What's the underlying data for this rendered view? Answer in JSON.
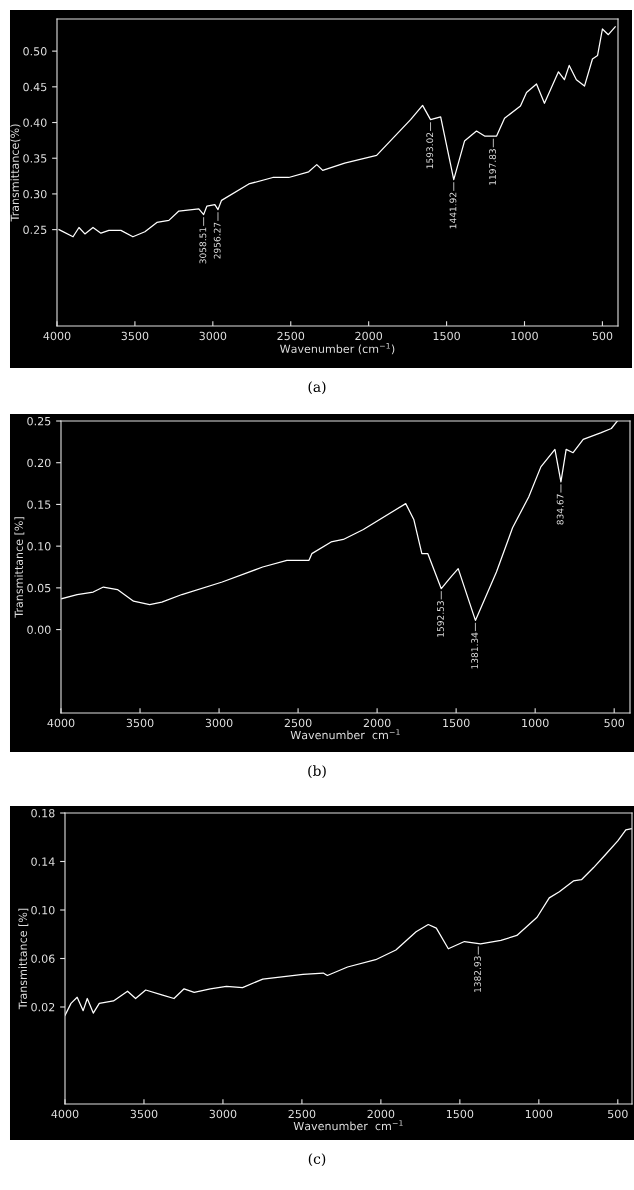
{
  "chart_data": [
    {
      "type": "line",
      "xlabel": "Wavenumber (cm$^{−1}$)",
      "ylabel": "Transmittance(%)",
      "xlim": [
        4000,
        400
      ],
      "ylim": [
        0.115,
        0.545
      ],
      "xticks": [
        4000,
        3500,
        3000,
        2500,
        2000,
        1500,
        1000,
        500
      ],
      "yticks": [
        {
          "value": 0.25,
          "label": "0.25"
        },
        {
          "value": 0.3,
          "label": "0.30"
        },
        {
          "value": 0.35,
          "label": "0.35"
        },
        {
          "value": 0.4,
          "label": "0.40"
        },
        {
          "value": 0.45,
          "label": "0.45"
        },
        {
          "value": 0.5,
          "label": "0.50"
        }
      ],
      "grid": false,
      "legend": false,
      "series": [
        {
          "color": "#ffffff",
          "x": [
            3987,
            3897,
            3859,
            3821,
            3769,
            3718,
            3667,
            3590,
            3513,
            3436,
            3359,
            3282,
            3218,
            3090,
            3059,
            3038,
            2987,
            2967,
            2944,
            2769,
            2615,
            2513,
            2385,
            2333,
            2295,
            2154,
            1949,
            1731,
            1654,
            1603,
            1538,
            1454,
            1385,
            1308,
            1256,
            1179,
            1128,
            1026,
            987,
            923,
            872,
            782,
            744,
            713,
            667,
            615,
            564,
            531,
            500,
            462,
            418
          ],
          "values": [
            0.25,
            0.24,
            0.253,
            0.244,
            0.253,
            0.245,
            0.249,
            0.249,
            0.24,
            0.247,
            0.26,
            0.263,
            0.276,
            0.279,
            0.271,
            0.283,
            0.285,
            0.278,
            0.291,
            0.314,
            0.323,
            0.323,
            0.331,
            0.341,
            0.333,
            0.343,
            0.354,
            0.404,
            0.424,
            0.404,
            0.408,
            0.32,
            0.374,
            0.388,
            0.381,
            0.381,
            0.406,
            0.423,
            0.442,
            0.454,
            0.427,
            0.471,
            0.46,
            0.48,
            0.46,
            0.451,
            0.489,
            0.494,
            0.531,
            0.523,
            0.534
          ]
        }
      ],
      "annotations": [
        {
          "text": "3058.51",
          "x": 3059,
          "y": 0.271
        },
        {
          "text": "2956.27",
          "x": 2967,
          "y": 0.278
        },
        {
          "text": "1593.02",
          "x": 1603,
          "y": 0.404
        },
        {
          "text": "1441.92",
          "x": 1454,
          "y": 0.32
        },
        {
          "text": "1197.83",
          "x": 1200,
          "y": 0.381
        },
        "(a)"
      ]
    },
    {
      "type": "line",
      "xlabel": "Wavenumber  cm$^{−1}$",
      "ylabel": "Transmittance [%]",
      "xlim": [
        4000,
        400
      ],
      "ylim": [
        -0.1,
        0.25
      ],
      "xticks": [
        4000,
        3500,
        3000,
        2500,
        2000,
        1500,
        1000,
        500
      ],
      "yticks": [
        {
          "value": 0.0,
          "label": "0.00"
        },
        {
          "value": 0.05,
          "label": "0.05"
        },
        {
          "value": 0.1,
          "label": "0.10"
        },
        {
          "value": 0.15,
          "label": "0.15"
        },
        {
          "value": 0.2,
          "label": "0.20"
        },
        {
          "value": 0.25,
          "label": "0.25"
        }
      ],
      "grid": false,
      "legend": false,
      "series": [
        {
          "color": "#ffffff",
          "x": [
            3995,
            3898,
            3796,
            3732,
            3643,
            3541,
            3439,
            3362,
            3235,
            2980,
            2724,
            2571,
            2431,
            2413,
            2291,
            2214,
            2087,
            1819,
            1768,
            1717,
            1679,
            1594,
            1538,
            1487,
            1378,
            1245,
            1143,
            1041,
            964,
            875,
            837,
            804,
            760,
            696,
            582,
            518,
            480
          ],
          "values": [
            0.037,
            0.042,
            0.045,
            0.051,
            0.048,
            0.034,
            0.03,
            0.033,
            0.042,
            0.057,
            0.075,
            0.083,
            0.083,
            0.091,
            0.105,
            0.108,
            0.12,
            0.151,
            0.132,
            0.091,
            0.091,
            0.049,
            0.062,
            0.073,
            0.011,
            0.069,
            0.122,
            0.159,
            0.195,
            0.216,
            0.177,
            0.216,
            0.212,
            0.228,
            0.236,
            0.241,
            0.25
          ]
        }
      ],
      "annotations": [
        {
          "text": "1592.53",
          "x": 1594,
          "y": 0.049
        },
        {
          "text": "1381.34",
          "x": 1378,
          "y": 0.011
        },
        {
          "text": "834.67",
          "x": 837,
          "y": 0.177
        },
        "(b)"
      ]
    },
    {
      "type": "line",
      "xlabel": "Wavenumber  cm$^{−1}$",
      "ylabel": "Transmittance [%]",
      "xlim": [
        4000,
        410
      ],
      "ylim": [
        -0.06,
        0.18
      ],
      "xticks": [
        4000,
        3500,
        3000,
        2500,
        2000,
        1500,
        1000,
        500
      ],
      "yticks": [
        {
          "value": 0.02,
          "label": "0.02"
        },
        {
          "value": 0.06,
          "label": "0.06"
        },
        {
          "value": 0.1,
          "label": "0.10"
        },
        {
          "value": 0.14,
          "label": "0.14"
        },
        {
          "value": 0.18,
          "label": "0.18"
        }
      ],
      "grid": false,
      "legend": false,
      "series": [
        {
          "color": "#ffffff",
          "x": [
            4000,
            3962,
            3923,
            3885,
            3859,
            3821,
            3783,
            3693,
            3604,
            3553,
            3489,
            3387,
            3310,
            3246,
            3182,
            3080,
            2978,
            2876,
            2748,
            2493,
            2365,
            2339,
            2211,
            2033,
            1905,
            1777,
            1700,
            1649,
            1573,
            1471,
            1369,
            1240,
            1139,
            1011,
            934,
            870,
            781,
            730,
            653,
            576,
            500,
            449,
            415
          ],
          "values": [
            0.013,
            0.023,
            0.028,
            0.017,
            0.027,
            0.015,
            0.023,
            0.025,
            0.033,
            0.027,
            0.034,
            0.03,
            0.027,
            0.035,
            0.032,
            0.035,
            0.037,
            0.036,
            0.043,
            0.047,
            0.048,
            0.046,
            0.053,
            0.059,
            0.067,
            0.082,
            0.088,
            0.085,
            0.068,
            0.074,
            0.072,
            0.075,
            0.079,
            0.094,
            0.11,
            0.115,
            0.124,
            0.125,
            0.135,
            0.146,
            0.157,
            0.166,
            0.167
          ]
        }
      ],
      "annotations": [
        {
          "text": "1382.93",
          "x": 1383,
          "y": 0.072
        },
        "(c)"
      ]
    }
  ]
}
